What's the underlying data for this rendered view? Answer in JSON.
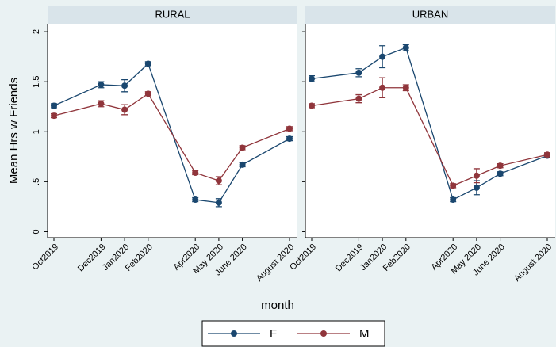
{
  "chart_data": {
    "type": "line",
    "ylabel": "Mean Hrs w Friends",
    "xlabel": "month",
    "x": [
      "Oct2019",
      "Dec2019",
      "Jan2020",
      "Feb2020",
      "Apr2020",
      "May 2020",
      "June 2020",
      "August 2020"
    ],
    "ylim": [
      -0.06,
      2.08
    ],
    "yticks": [
      0,
      {
        "value": 0.5,
        "label": ".5"
      },
      1,
      1.5,
      2
    ],
    "panels": [
      {
        "title": "RURAL",
        "series": [
          {
            "name": "F",
            "color": "#1a476f",
            "values": [
              1.26,
              1.47,
              1.46,
              1.68,
              0.32,
              0.29,
              0.67,
              0.93
            ],
            "errors": [
              0.02,
              0.03,
              0.06,
              0.02,
              0.02,
              0.04,
              0.02,
              0.02
            ]
          },
          {
            "name": "M",
            "color": "#90353b",
            "values": [
              1.16,
              1.28,
              1.22,
              1.38,
              0.59,
              0.51,
              0.84,
              1.03
            ],
            "errors": [
              0.02,
              0.03,
              0.05,
              0.02,
              0.02,
              0.04,
              0.02,
              0.02
            ]
          }
        ]
      },
      {
        "title": "URBAN",
        "series": [
          {
            "name": "F",
            "color": "#1a476f",
            "values": [
              1.53,
              1.59,
              1.75,
              1.84,
              0.32,
              0.44,
              0.58,
              0.76
            ],
            "errors": [
              0.03,
              0.04,
              0.11,
              0.03,
              0.02,
              0.07,
              0.02,
              0.02
            ]
          },
          {
            "name": "M",
            "color": "#90353b",
            "values": [
              1.26,
              1.33,
              1.44,
              1.44,
              0.46,
              0.56,
              0.66,
              0.77
            ],
            "errors": [
              0.02,
              0.04,
              0.1,
              0.03,
              0.02,
              0.07,
              0.02,
              0.02
            ]
          }
        ]
      }
    ]
  }
}
